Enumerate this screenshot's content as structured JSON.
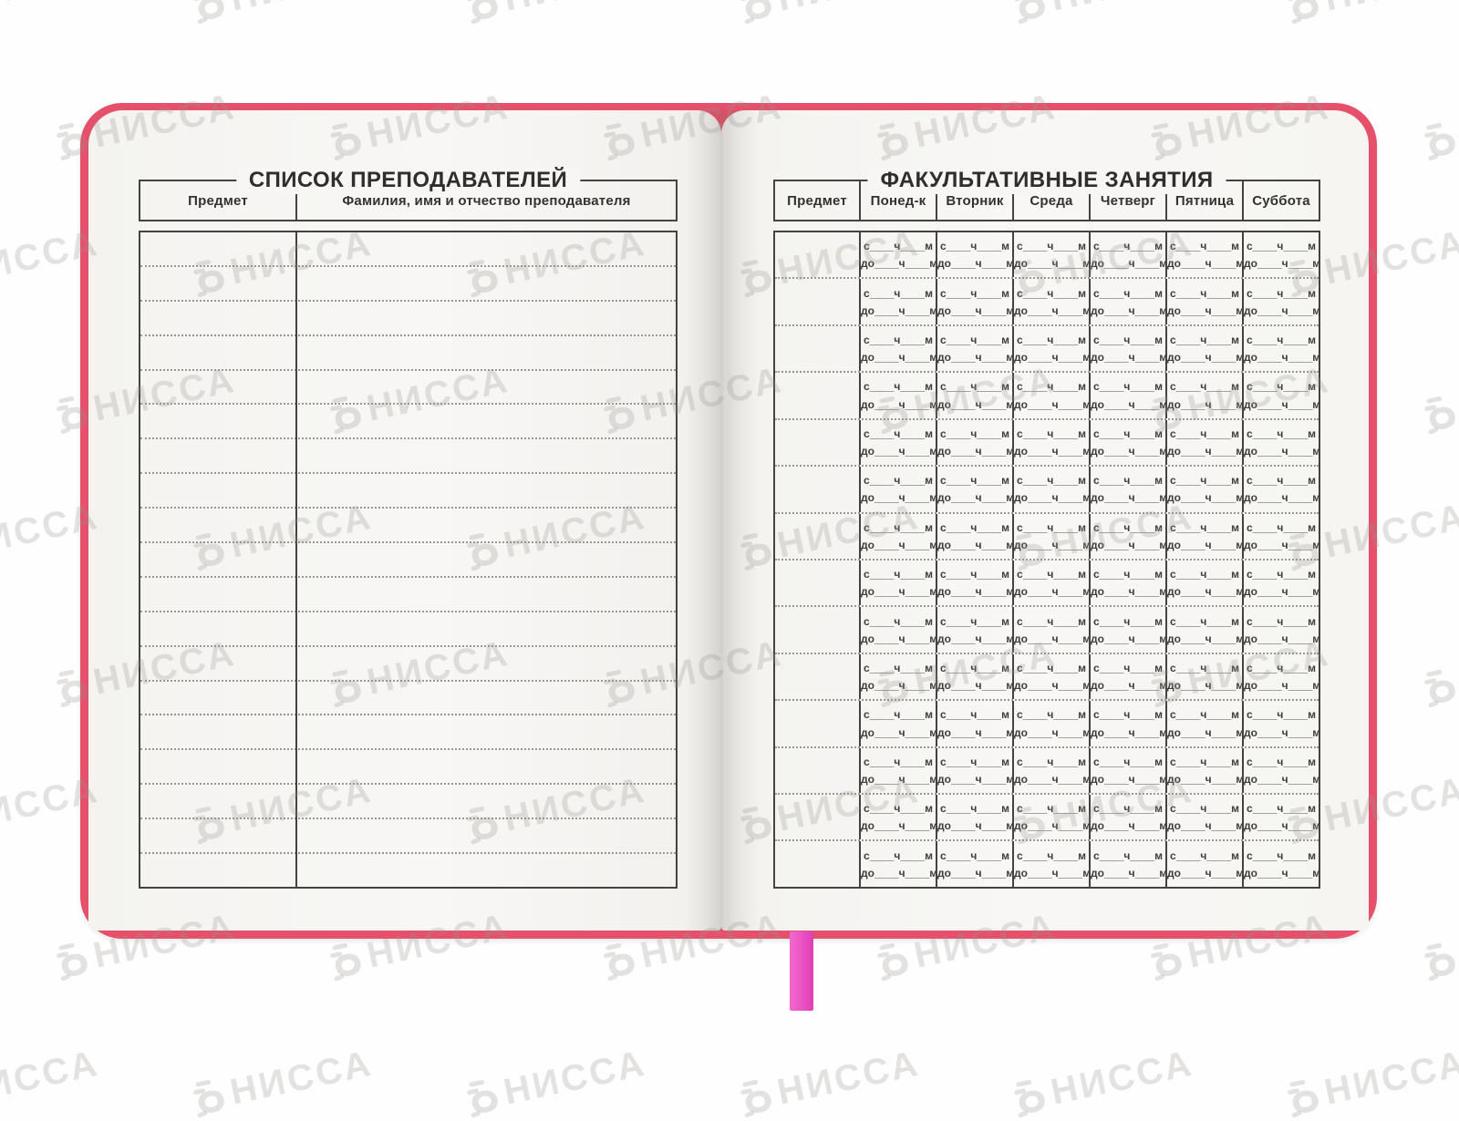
{
  "watermark": {
    "text": "НИССА"
  },
  "notebook": {
    "cover_color": "#e5516b",
    "ribbon_color": "#ee58c8",
    "page_color": "#f7f6f4"
  },
  "left_page": {
    "title": "СПИСОК ПРЕПОДАВАТЕЛЕЙ",
    "columns": [
      "Предмет",
      "Фамилия, имя и отчество преподавателя"
    ],
    "row_count": 19
  },
  "right_page": {
    "title": "ФАКУЛЬТАТИВНЫЕ ЗАНЯТИЯ",
    "columns": [
      "Предмет",
      "Понед-к",
      "Вторник",
      "Среда",
      "Четверг",
      "Пятница",
      "Суббота"
    ],
    "row_count": 14,
    "cell": {
      "from_line": "с____ч____м",
      "to_line": "до____ч____м"
    }
  }
}
